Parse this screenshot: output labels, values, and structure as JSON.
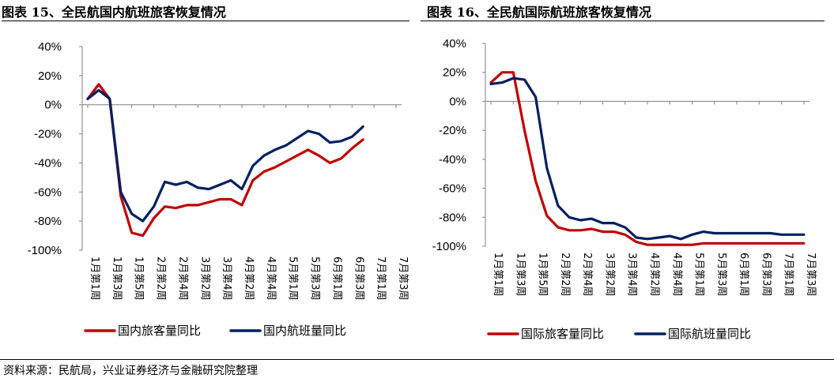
{
  "source_text": "资料来源：民航局，兴业证券经济与金融研究院整理",
  "chart_data": [
    {
      "type": "line",
      "title": "图表 15、全民航国内航班旅客恢复情况",
      "xlabel": "",
      "ylabel": "",
      "ylim": [
        -100,
        40
      ],
      "yticks": [
        "40%",
        "20%",
        "0%",
        "-20%",
        "-40%",
        "-60%",
        "-80%",
        "-100%"
      ],
      "xtick_labels": [
        "1月第1周",
        "1月第3周",
        "1月第5周",
        "2月第2周",
        "2月第4周",
        "3月第2周",
        "3月第4周",
        "4月第2周",
        "4月第4周",
        "5月第1周",
        "5月第3周",
        "6月第1周",
        "6月第3周",
        "7月第1周",
        "7月第3周"
      ],
      "legend_position": "bottom",
      "grid": false,
      "x": [
        "1月第1周",
        "1月第2周",
        "1月第3周",
        "1月第4周",
        "1月第5周",
        "2月第1周",
        "2月第2周",
        "2月第3周",
        "2月第4周",
        "3月第1周",
        "3月第2周",
        "3月第3周",
        "3月第4周",
        "4月第1周",
        "4月第2周",
        "4月第3周",
        "4月第4周",
        "4月第5周",
        "5月第1周",
        "5月第2周",
        "5月第3周",
        "5月第4周",
        "6月第1周",
        "6月第2周",
        "6月第3周",
        "6月第4周",
        "7月第1周",
        "7月第2周",
        "7月第3周"
      ],
      "series": [
        {
          "name": "国内旅客量同比",
          "color": "#C00000",
          "values": [
            4,
            14,
            4,
            -63,
            -88,
            -90,
            -78,
            -70,
            -71,
            -69,
            -69,
            -67,
            -65,
            -65,
            -69,
            -52,
            -46,
            -43,
            -39,
            -35,
            -31,
            -35,
            -40,
            -37,
            -30,
            -24,
            null,
            null,
            null
          ]
        },
        {
          "name": "国内航班量同比",
          "color": "#002060",
          "values": [
            4,
            10,
            4,
            -60,
            -75,
            -80,
            -70,
            -53,
            -55,
            -53,
            -57,
            -58,
            -55,
            -52,
            -58,
            -42,
            -35,
            -31,
            -28,
            -23,
            -18,
            -20,
            -26,
            -25,
            -22,
            -15,
            null,
            null,
            null
          ]
        }
      ]
    },
    {
      "type": "line",
      "title": "图表 16、全民航国际航班旅客恢复情况",
      "xlabel": "",
      "ylabel": "",
      "ylim": [
        -100,
        40
      ],
      "yticks": [
        "40%",
        "20%",
        "0%",
        "-20%",
        "-40%",
        "-60%",
        "-80%",
        "-100%"
      ],
      "xtick_labels": [
        "1月第1周",
        "1月第3周",
        "1月第5周",
        "2月第2周",
        "2月第4周",
        "3月第2周",
        "3月第4周",
        "4月第2周",
        "4月第4周",
        "5月第1周",
        "5月第3周",
        "6月第1周",
        "6月第3周",
        "7月第1周",
        "7月第3周"
      ],
      "legend_position": "bottom",
      "grid": false,
      "x": [
        "1月第1周",
        "1月第2周",
        "1月第3周",
        "1月第4周",
        "1月第5周",
        "2月第1周",
        "2月第2周",
        "2月第3周",
        "2月第4周",
        "3月第1周",
        "3月第2周",
        "3月第3周",
        "3月第4周",
        "4月第1周",
        "4月第2周",
        "4月第3周",
        "4月第4周",
        "4月第5周",
        "5月第1周",
        "5月第2周",
        "5月第3周",
        "5月第4周",
        "6月第1周",
        "6月第2周",
        "6月第3周",
        "6月第4周",
        "7月第1周",
        "7月第2周",
        "7月第3周"
      ],
      "series": [
        {
          "name": "国际旅客量同比",
          "color": "#C00000",
          "values": [
            13,
            20,
            20,
            -20,
            -55,
            -79,
            -87,
            -89,
            -89,
            -88,
            -90,
            -90,
            -92,
            -97,
            -99,
            -99,
            -99,
            -99,
            -99,
            -98,
            -98,
            -98,
            -98,
            -98,
            -98,
            -98,
            -98,
            -98,
            -98
          ]
        },
        {
          "name": "国际航班量同比",
          "color": "#002060",
          "values": [
            12,
            13,
            16,
            15,
            3,
            -46,
            -72,
            -80,
            -82,
            -81,
            -84,
            -84,
            -87,
            -94,
            -95,
            -94,
            -93,
            -95,
            -92,
            -90,
            -91,
            -91,
            -91,
            -91,
            -91,
            -91,
            -92,
            -92,
            -92
          ]
        }
      ]
    }
  ]
}
